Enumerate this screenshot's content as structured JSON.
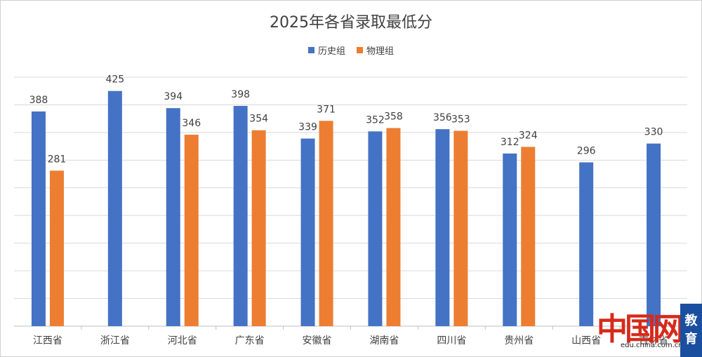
{
  "chart_data": {
    "type": "bar",
    "title": "2025年各省录取最低分",
    "categories": [
      "江西省",
      "浙江省",
      "河北省",
      "广东省",
      "安徽省",
      "湖南省",
      "四川省",
      "贵州省",
      "山西省",
      "吉林省"
    ],
    "series": [
      {
        "name": "历史组",
        "color": "#4472c4",
        "values": [
          388,
          425,
          394,
          398,
          339,
          352,
          356,
          312,
          296,
          330
        ]
      },
      {
        "name": "物理组",
        "color": "#ed7d31",
        "values": [
          281,
          null,
          346,
          354,
          371,
          358,
          353,
          324,
          null,
          null
        ]
      }
    ],
    "ylim": [
      0,
      450
    ],
    "grid": true,
    "legend_position": "top"
  },
  "watermark": {
    "logo": "中国网",
    "url": "edu.china.com.cn",
    "badge": [
      "教",
      "育"
    ]
  }
}
